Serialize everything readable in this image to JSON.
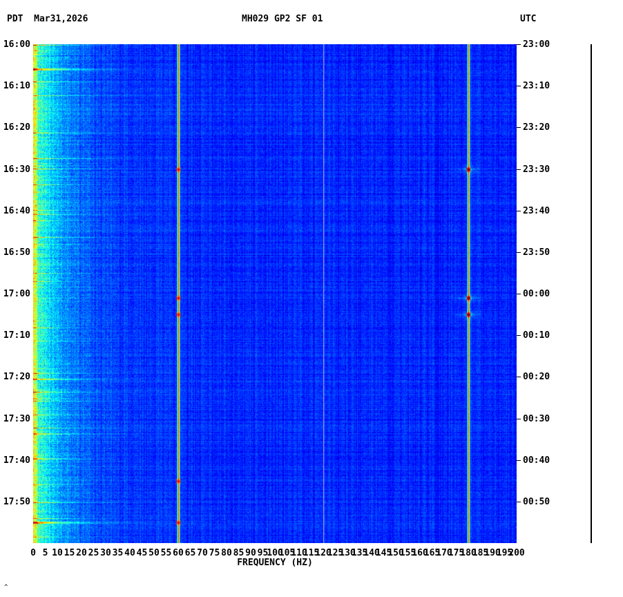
{
  "header": {
    "left": "PDT  Mar31,2026",
    "center": "MH029 GP2 SF 01",
    "right": "UTC"
  },
  "footer_mark": "^",
  "chart_data": {
    "type": "heatmap",
    "title": "MH029 GP2 SF 01",
    "xlabel": "FREQUENCY (HZ)",
    "x_range_hz": [
      0,
      200
    ],
    "x_tick_step_hz": 5,
    "x_tick_labels": [
      "0",
      "5",
      "10",
      "15",
      "20",
      "25",
      "30",
      "35",
      "40",
      "45",
      "50",
      "55",
      "60",
      "65",
      "70",
      "75",
      "80",
      "85",
      "90",
      "95",
      "100",
      "105",
      "110",
      "115",
      "120",
      "125",
      "130",
      "135",
      "140",
      "145",
      "150",
      "155",
      "160",
      "165",
      "170",
      "175",
      "180",
      "185",
      "190",
      "195",
      "200"
    ],
    "duration_minutes": 120,
    "left_axis": {
      "timezone": "PDT",
      "tick_labels": [
        "16:00",
        "16:10",
        "16:20",
        "16:30",
        "16:40",
        "16:50",
        "17:00",
        "17:10",
        "17:20",
        "17:30",
        "17:40",
        "17:50"
      ]
    },
    "right_axis": {
      "timezone": "UTC",
      "tick_labels": [
        "23:00",
        "23:10",
        "23:20",
        "23:30",
        "23:40",
        "23:50",
        "00:00",
        "00:10",
        "00:20",
        "00:30",
        "00:40",
        "00:50"
      ]
    },
    "colormap": "jet",
    "colors": {
      "plot_background_blue": "#0022dd",
      "low_freq_noise_cyan": "#00ccdd",
      "hum_line_orange": "#ff7700",
      "event_red": "#cc0000",
      "faint_line_white": "#ccddee",
      "text": "#000000",
      "page_background": "#ffffff"
    },
    "features": {
      "hum_lines_hz": [
        60,
        180
      ],
      "faint_line_hz": 120,
      "low_freq_noise_band_hz": [
        0,
        30
      ],
      "events": [
        {
          "time_pdt": "16:06",
          "type": "low-frequency-burst"
        },
        {
          "time_pdt": "16:30",
          "type": "burst-60hz-180hz"
        },
        {
          "time_pdt": "17:01",
          "type": "burst-60hz-180hz"
        },
        {
          "time_pdt": "17:05",
          "type": "burst-60hz-180hz"
        },
        {
          "time_pdt": "17:45",
          "type": "burst-60hz"
        },
        {
          "time_pdt": "17:55",
          "type": "low-frequency-burst-60hz"
        }
      ]
    }
  }
}
